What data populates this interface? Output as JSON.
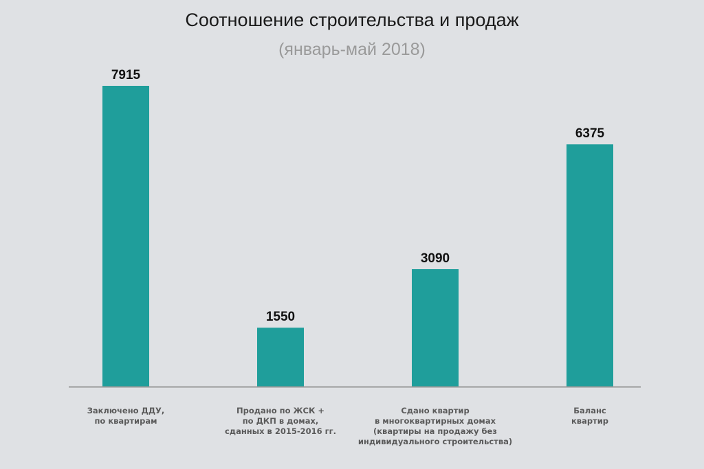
{
  "chart_data": {
    "type": "bar",
    "title": "Соотношение строительства и продаж",
    "subtitle": "(январь-май 2018)",
    "categories": [
      [
        "Заключено ДДУ,",
        "по квартирам"
      ],
      [
        "Продано по ЖСК +",
        "по ДКП в домах,",
        "сданных в 2015-2016 гг."
      ],
      [
        "Сдано квартир",
        "в многоквартирных домах",
        "(квартиры на продажу без",
        "индивидуального строительства)"
      ],
      [
        "Баланс",
        "квартир"
      ]
    ],
    "values": [
      7915,
      1550,
      3090,
      6375
    ],
    "value_labels": [
      "7915",
      "1550",
      "3090",
      "6375"
    ],
    "ylim": [
      0,
      7915
    ],
    "grid": false,
    "legend": "none",
    "bar_color": "#1f9e9b",
    "axis_color": "#9a9a9a"
  }
}
